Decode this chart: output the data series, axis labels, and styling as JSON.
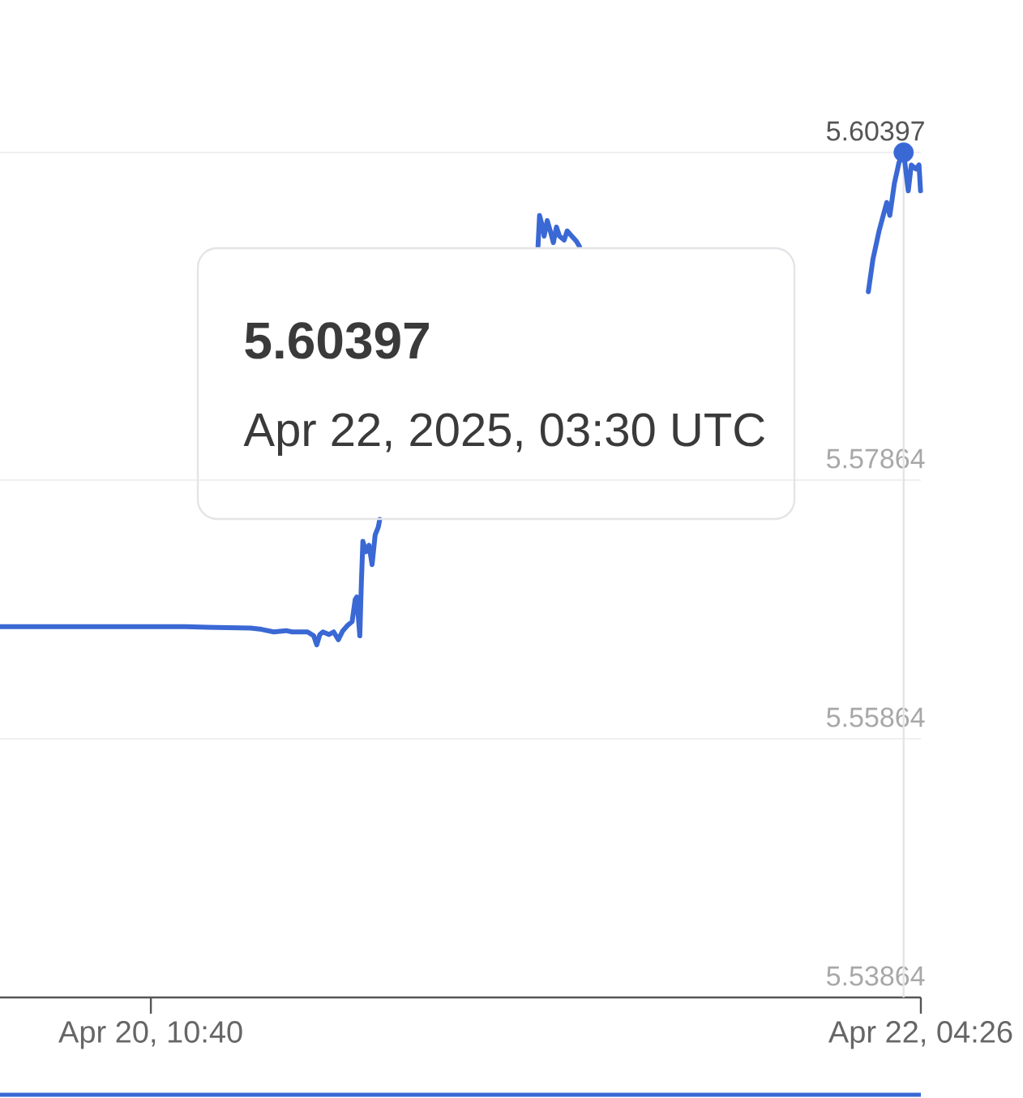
{
  "chart_data": {
    "type": "line",
    "xlim": [
      "2025-04-20T02:29",
      "2025-04-22T04:26"
    ],
    "xticks": [
      {
        "value": "2025-04-20T10:40",
        "label": "Apr 20, 10:40"
      },
      {
        "value": "2025-04-22T04:26",
        "label": "Apr 22, 04:26"
      }
    ],
    "ylim": [
      5.53864,
      5.60397
    ],
    "yticks": [
      5.53864,
      5.55864,
      5.57864,
      5.60397
    ],
    "grid": "y",
    "series": [
      {
        "color": "#3a68d4",
        "line_style": "solid",
        "x": [
          "2025-04-20T02:29",
          "2025-04-20T07:30",
          "2025-04-20T12:30",
          "2025-04-20T16:05",
          "2025-04-20T16:40",
          "2025-04-20T17:20",
          "2025-04-20T18:00",
          "2025-04-20T18:20",
          "2025-04-20T18:50",
          "2025-04-20T19:10",
          "2025-04-20T19:30",
          "2025-04-20T19:40",
          "2025-04-20T19:50",
          "2025-04-20T20:00",
          "2025-04-20T20:20",
          "2025-04-20T20:35",
          "2025-04-20T20:50",
          "2025-04-20T21:05",
          "2025-04-20T21:20",
          "2025-04-20T21:35",
          "2025-04-20T21:45",
          "2025-04-20T21:50",
          "2025-04-20T21:55",
          "2025-04-20T22:00",
          "2025-04-20T22:05",
          "2025-04-20T22:10",
          "2025-04-20T22:20",
          "2025-04-20T22:30",
          "2025-04-20T22:40",
          "2025-04-20T22:50",
          "2025-04-20T23:00",
          "2025-04-20T23:05",
          "2025-04-21T03:30",
          "2025-04-21T07:40",
          "2025-04-21T07:45",
          "2025-04-21T07:55",
          "2025-04-21T08:00",
          "2025-04-21T08:10",
          "2025-04-21T08:20",
          "2025-04-21T08:30",
          "2025-04-21T08:40",
          "2025-04-21T08:50",
          "2025-04-21T09:05",
          "2025-04-21T09:15",
          "2025-04-21T09:30",
          "2025-04-21T09:45",
          "2025-04-21T09:55",
          "2025-04-21T17:50",
          "2025-04-22T01:35",
          "2025-04-22T01:50",
          "2025-04-22T02:10",
          "2025-04-22T02:35",
          "2025-04-22T02:45",
          "2025-04-22T03:00",
          "2025-04-22T03:15",
          "2025-04-22T03:30",
          "2025-04-22T03:45",
          "2025-04-22T03:55",
          "2025-04-22T04:10",
          "2025-04-22T04:20",
          "2025-04-22T04:25"
        ],
        "values": [
          5.5673,
          5.5673,
          5.5673,
          5.5672,
          5.5671,
          5.5669,
          5.567,
          5.5669,
          5.5669,
          5.5669,
          5.5666,
          5.5659,
          5.5667,
          5.5669,
          5.5667,
          5.5669,
          5.5663,
          5.567,
          5.5674,
          5.5677,
          5.5694,
          5.5696,
          5.5681,
          5.5666,
          5.5706,
          5.5739,
          5.5731,
          5.5736,
          5.5721,
          5.5744,
          5.575,
          5.5756,
          null,
          5.5967,
          5.5991,
          5.5982,
          5.5975,
          5.5987,
          5.5979,
          5.597,
          5.5982,
          5.5975,
          5.5972,
          5.5979,
          5.5975,
          5.5971,
          5.5967,
          null,
          5.5932,
          5.5957,
          5.5979,
          5.6001,
          5.5991,
          5.6016,
          5.6032,
          5.60397,
          5.601,
          5.603,
          5.6027,
          5.603,
          5.601
        ]
      },
      {
        "type": "scatter",
        "color": "#3a68d4",
        "marker": "circle",
        "x": [
          "2025-04-22T03:30"
        ],
        "values": [
          5.60397
        ]
      }
    ],
    "ref_lines": [
      {
        "axis": "x",
        "value": "2025-04-22T03:30",
        "color": "#e4e4e8"
      }
    ],
    "annotations": [
      "5.60397",
      "Apr 22, 2025, 03:30 UTC"
    ]
  }
}
